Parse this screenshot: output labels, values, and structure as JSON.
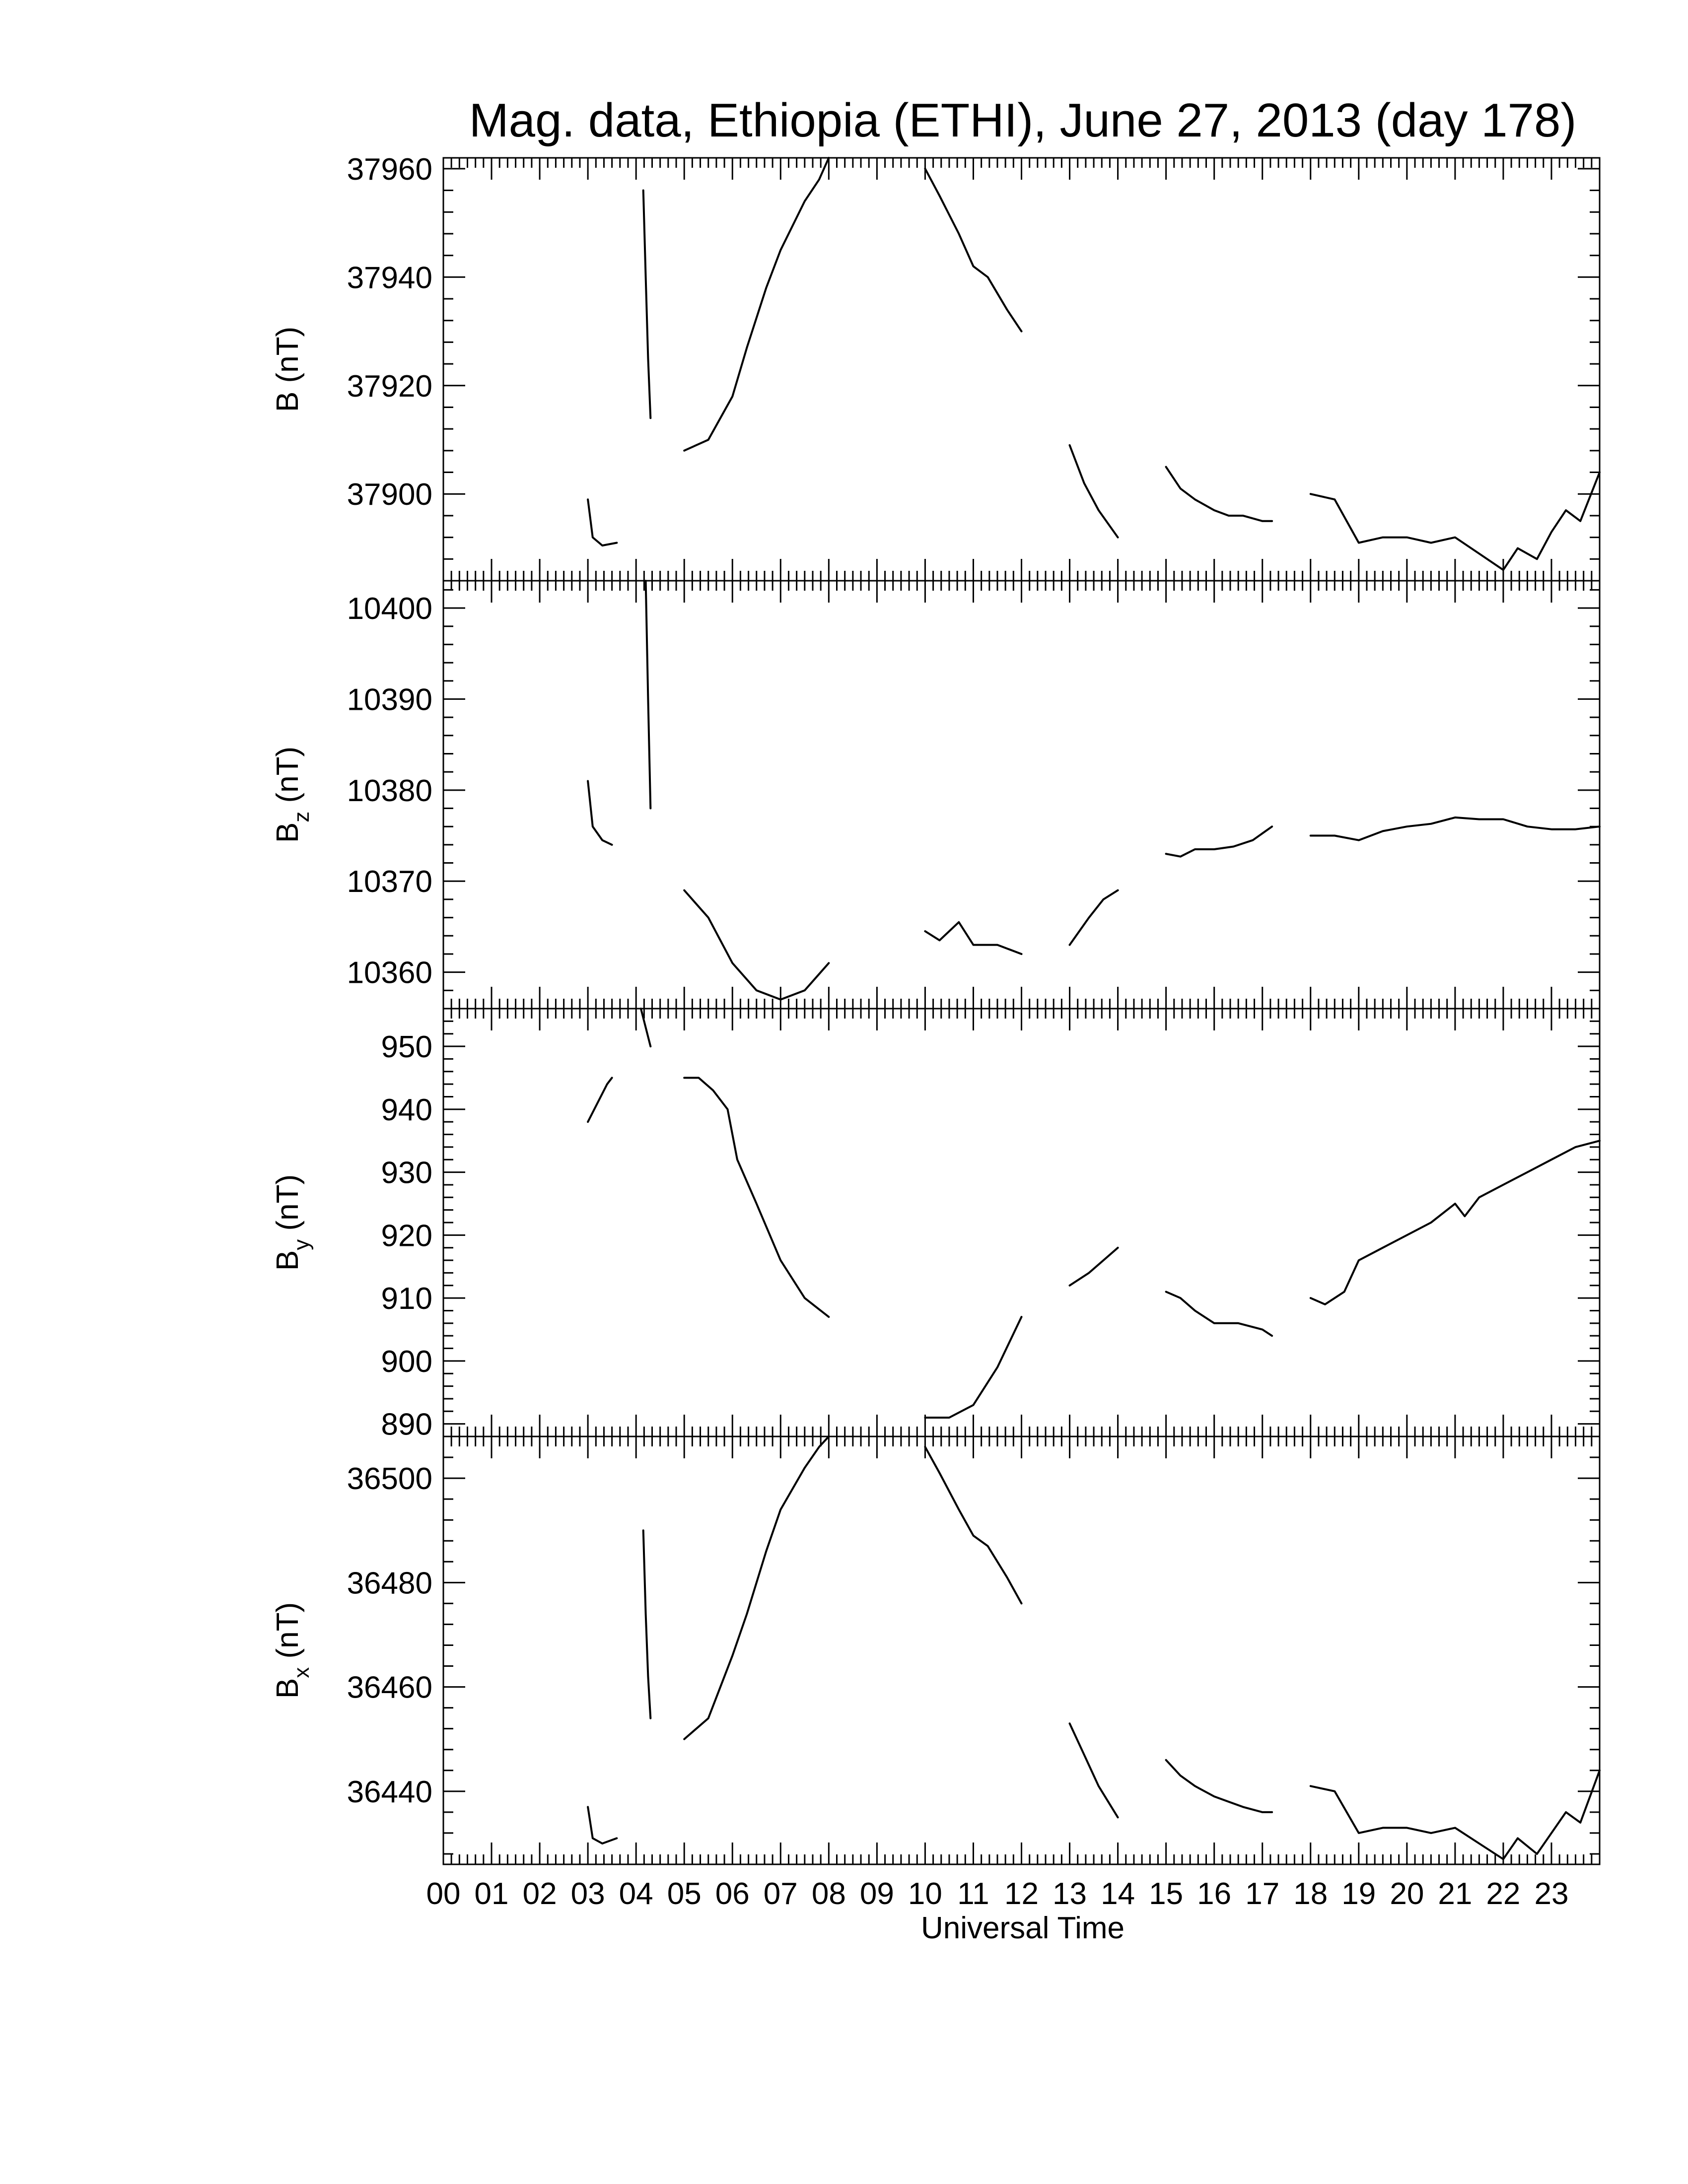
{
  "chart_data": {
    "type": "line",
    "title": "Mag. data, Ethiopia (ETHI), June 27, 2013 (day 178)",
    "xlabel": "Universal Time",
    "xlim": [
      0,
      24
    ],
    "x_tick_labels": [
      "00",
      "01",
      "02",
      "03",
      "04",
      "05",
      "06",
      "07",
      "08",
      "09",
      "10",
      "11",
      "12",
      "13",
      "14",
      "15",
      "16",
      "17",
      "18",
      "19",
      "20",
      "21",
      "22",
      "23"
    ],
    "panels": [
      {
        "name": "B",
        "ylabel": "B (nT)",
        "ylabel_main": "B",
        "ylabel_sub": "",
        "ylabel_unit": "(nT)",
        "ylim": [
          37884,
          37962
        ],
        "yticks": [
          37900,
          37920,
          37940,
          37960
        ],
        "segments": [
          [
            [
              3.0,
              37899
            ],
            [
              3.1,
              37892
            ],
            [
              3.3,
              37890.5
            ],
            [
              3.6,
              37891
            ]
          ],
          [
            [
              4.15,
              37956
            ],
            [
              4.2,
              37940
            ],
            [
              4.25,
              37925
            ],
            [
              4.3,
              37914
            ]
          ],
          [
            [
              5.0,
              37908
            ],
            [
              5.5,
              37910
            ],
            [
              6.0,
              37918
            ],
            [
              6.3,
              37927
            ],
            [
              6.7,
              37938
            ],
            [
              7.0,
              37945
            ],
            [
              7.5,
              37954
            ],
            [
              7.8,
              37958
            ],
            [
              8.0,
              37962
            ]
          ],
          [
            [
              10.0,
              37960
            ],
            [
              10.3,
              37955
            ],
            [
              10.7,
              37948
            ],
            [
              11.0,
              37942
            ],
            [
              11.3,
              37940
            ],
            [
              11.7,
              37934
            ],
            [
              12.0,
              37930
            ]
          ],
          [
            [
              13.0,
              37909
            ],
            [
              13.3,
              37902
            ],
            [
              13.6,
              37897
            ],
            [
              14.0,
              37892
            ]
          ],
          [
            [
              15.0,
              37905
            ],
            [
              15.3,
              37901
            ],
            [
              15.6,
              37899
            ],
            [
              16.0,
              37897
            ],
            [
              16.3,
              37896
            ],
            [
              16.6,
              37896
            ],
            [
              17.0,
              37895
            ],
            [
              17.2,
              37895
            ]
          ],
          [
            [
              18.0,
              37900
            ],
            [
              18.5,
              37899
            ],
            [
              19.0,
              37891
            ],
            [
              19.5,
              37892
            ],
            [
              20.0,
              37892
            ],
            [
              20.5,
              37891
            ],
            [
              21.0,
              37892
            ],
            [
              21.5,
              37889
            ],
            [
              22.0,
              37886
            ],
            [
              22.3,
              37890
            ],
            [
              22.7,
              37888
            ],
            [
              23.0,
              37893
            ],
            [
              23.3,
              37897
            ],
            [
              23.6,
              37895
            ],
            [
              24.0,
              37904
            ]
          ]
        ]
      },
      {
        "name": "Bz",
        "ylabel": "Bz (nT)",
        "ylabel_main": "B",
        "ylabel_sub": "z",
        "ylabel_unit": "(nT)",
        "ylim": [
          10356,
          10403
        ],
        "yticks": [
          10360,
          10370,
          10380,
          10390,
          10400
        ],
        "segments": [
          [
            [
              3.0,
              10381
            ],
            [
              3.1,
              10376
            ],
            [
              3.3,
              10374.5
            ],
            [
              3.5,
              10374
            ]
          ],
          [
            [
              4.2,
              10403
            ],
            [
              4.25,
              10390
            ],
            [
              4.3,
              10378
            ]
          ],
          [
            [
              5.0,
              10369
            ],
            [
              5.5,
              10366
            ],
            [
              6.0,
              10361
            ],
            [
              6.5,
              10358
            ],
            [
              7.0,
              10357
            ],
            [
              7.5,
              10358
            ],
            [
              8.0,
              10361
            ]
          ],
          [
            [
              10.0,
              10364.5
            ],
            [
              10.3,
              10363.5
            ],
            [
              10.7,
              10365.5
            ],
            [
              11.0,
              10363
            ],
            [
              11.5,
              10363
            ],
            [
              12.0,
              10362
            ]
          ],
          [
            [
              13.0,
              10363
            ],
            [
              13.4,
              10366
            ],
            [
              13.7,
              10368
            ],
            [
              14.0,
              10369
            ]
          ],
          [
            [
              15.0,
              10373
            ],
            [
              15.3,
              10372.7
            ],
            [
              15.6,
              10373.5
            ],
            [
              16.0,
              10373.5
            ],
            [
              16.4,
              10373.8
            ],
            [
              16.8,
              10374.5
            ],
            [
              17.2,
              10376
            ]
          ],
          [
            [
              18.0,
              10375
            ],
            [
              18.5,
              10375
            ],
            [
              19.0,
              10374.5
            ],
            [
              19.5,
              10375.5
            ],
            [
              20.0,
              10376
            ],
            [
              20.5,
              10376.3
            ],
            [
              21.0,
              10377
            ],
            [
              21.5,
              10376.8
            ],
            [
              22.0,
              10376.8
            ],
            [
              22.5,
              10376
            ],
            [
              23.0,
              10375.7
            ],
            [
              23.5,
              10375.7
            ],
            [
              24.0,
              10376
            ]
          ]
        ]
      },
      {
        "name": "By",
        "ylabel": "By (nT)",
        "ylabel_main": "B",
        "ylabel_sub": "y",
        "ylabel_unit": "(nT)",
        "ylim": [
          888,
          956
        ],
        "yticks": [
          890,
          900,
          910,
          920,
          930,
          940,
          950
        ],
        "segments": [
          [
            [
              3.0,
              938
            ],
            [
              3.2,
              941
            ],
            [
              3.4,
              944
            ],
            [
              3.5,
              945
            ]
          ],
          [
            [
              4.1,
              956
            ],
            [
              4.3,
              950
            ]
          ],
          [
            [
              5.0,
              945
            ],
            [
              5.3,
              945
            ],
            [
              5.6,
              943
            ],
            [
              5.9,
              940
            ],
            [
              6.1,
              932
            ],
            [
              6.5,
              925
            ],
            [
              7.0,
              916
            ],
            [
              7.5,
              910
            ],
            [
              8.0,
              907
            ]
          ],
          [
            [
              10.0,
              891
            ],
            [
              10.5,
              891
            ],
            [
              11.0,
              893
            ],
            [
              11.5,
              899
            ],
            [
              12.0,
              907
            ]
          ],
          [
            [
              13.0,
              912
            ],
            [
              13.4,
              914
            ],
            [
              13.7,
              916
            ],
            [
              14.0,
              918
            ]
          ],
          [
            [
              15.0,
              911
            ],
            [
              15.3,
              910
            ],
            [
              15.6,
              908
            ],
            [
              16.0,
              906
            ],
            [
              16.5,
              906
            ],
            [
              17.0,
              905
            ],
            [
              17.2,
              904
            ]
          ],
          [
            [
              18.0,
              910
            ],
            [
              18.3,
              909
            ],
            [
              18.7,
              911
            ],
            [
              19.0,
              916
            ],
            [
              19.5,
              918
            ],
            [
              20.0,
              920
            ],
            [
              20.5,
              922
            ],
            [
              21.0,
              925
            ],
            [
              21.2,
              923
            ],
            [
              21.5,
              926
            ],
            [
              22.0,
              928
            ],
            [
              22.5,
              930
            ],
            [
              23.0,
              932
            ],
            [
              23.5,
              934
            ],
            [
              24.0,
              935
            ]
          ]
        ]
      },
      {
        "name": "Bx",
        "ylabel": "Bx (nT)",
        "ylabel_main": "B",
        "ylabel_sub": "x",
        "ylabel_unit": "(nT)",
        "ylim": [
          36426,
          36508
        ],
        "yticks": [
          36440,
          36460,
          36480,
          36500
        ],
        "segments": [
          [
            [
              3.0,
              36437
            ],
            [
              3.1,
              36431
            ],
            [
              3.3,
              36430
            ],
            [
              3.6,
              36431
            ]
          ],
          [
            [
              4.15,
              36490
            ],
            [
              4.2,
              36474
            ],
            [
              4.25,
              36462
            ],
            [
              4.3,
              36454
            ]
          ],
          [
            [
              5.0,
              36450
            ],
            [
              5.5,
              36454
            ],
            [
              6.0,
              36466
            ],
            [
              6.3,
              36474
            ],
            [
              6.7,
              36486
            ],
            [
              7.0,
              36494
            ],
            [
              7.5,
              36502
            ],
            [
              7.8,
              36506
            ],
            [
              8.0,
              36508
            ]
          ],
          [
            [
              10.0,
              36506
            ],
            [
              10.3,
              36501
            ],
            [
              10.7,
              36494
            ],
            [
              11.0,
              36489
            ],
            [
              11.3,
              36487
            ],
            [
              11.7,
              36481
            ],
            [
              12.0,
              36476
            ]
          ],
          [
            [
              13.0,
              36453
            ],
            [
              13.3,
              36447
            ],
            [
              13.6,
              36441
            ],
            [
              14.0,
              36435
            ]
          ],
          [
            [
              15.0,
              36446
            ],
            [
              15.3,
              36443
            ],
            [
              15.6,
              36441
            ],
            [
              16.0,
              36439
            ],
            [
              16.3,
              36438
            ],
            [
              16.6,
              36437
            ],
            [
              17.0,
              36436
            ],
            [
              17.2,
              36436
            ]
          ],
          [
            [
              18.0,
              36441
            ],
            [
              18.5,
              36440
            ],
            [
              19.0,
              36432
            ],
            [
              19.5,
              36433
            ],
            [
              20.0,
              36433
            ],
            [
              20.5,
              36432
            ],
            [
              21.0,
              36433
            ],
            [
              21.5,
              36430
            ],
            [
              22.0,
              36427
            ],
            [
              22.3,
              36431
            ],
            [
              22.7,
              36428
            ],
            [
              23.0,
              36432
            ],
            [
              23.3,
              36436
            ],
            [
              23.6,
              36434
            ],
            [
              24.0,
              36444
            ]
          ]
        ]
      }
    ]
  }
}
